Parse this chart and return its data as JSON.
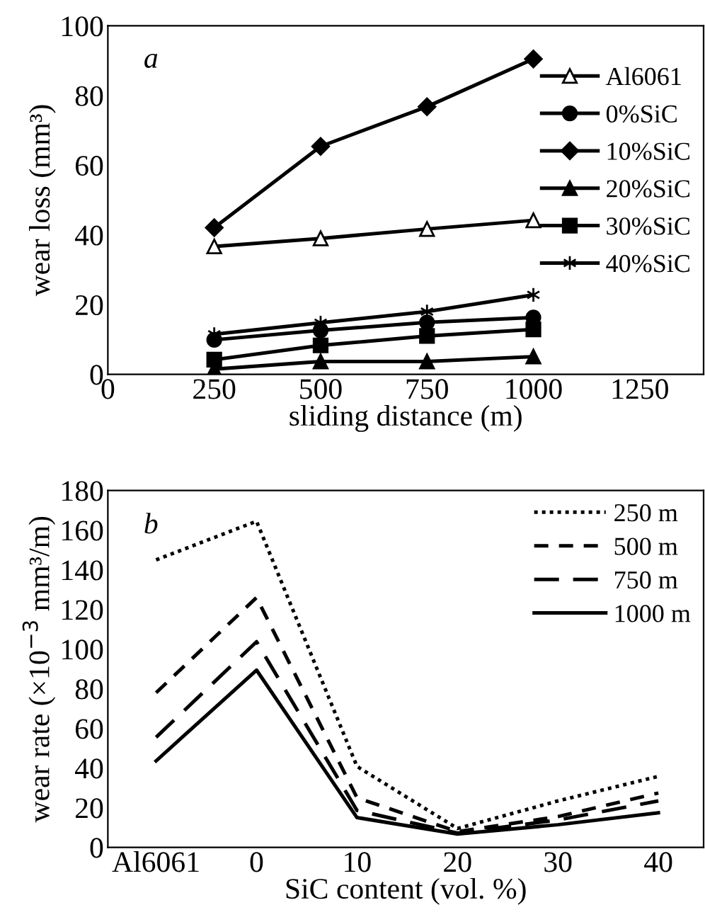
{
  "chart_data": [
    {
      "type": "line",
      "xlabel": "sliding distance (m)",
      "ylabel": "wear loss (mm³)",
      "annotations": [
        "a"
      ],
      "x": [
        250,
        500,
        750,
        1000
      ],
      "xlim": [
        0,
        1400
      ],
      "xticks": [
        0,
        250,
        500,
        750,
        1000,
        1250
      ],
      "ylim": [
        0,
        100
      ],
      "yticks": [
        0,
        20,
        40,
        60,
        80,
        100
      ],
      "legend": "right",
      "line_style": "solid",
      "series": [
        {
          "name": "Al6061",
          "color": "#000000",
          "marker": "triangle-open",
          "values": [
            36.7,
            39,
            41.7,
            44.2
          ]
        },
        {
          "name": "0%SiC",
          "color": "#000000",
          "marker": "circle",
          "values": [
            9.9,
            12.6,
            14.9,
            16.3
          ]
        },
        {
          "name": "10%SiC",
          "color": "#000000",
          "marker": "diamond",
          "values": [
            42.1,
            65.4,
            76.8,
            90.5
          ]
        },
        {
          "name": "20%SiC",
          "color": "#000000",
          "marker": "triangle",
          "values": [
            1.5,
            3.7,
            3.7,
            5.1
          ]
        },
        {
          "name": "30%SiC",
          "color": "#000000",
          "marker": "square",
          "values": [
            4.2,
            8.3,
            11,
            12.9
          ]
        },
        {
          "name": "40%SiC",
          "color": "#000000",
          "marker": "cross",
          "values": [
            11.5,
            14.8,
            18,
            22.8
          ]
        }
      ]
    },
    {
      "type": "line",
      "xlabel": "SiC content (vol. %)",
      "ylabel": "wear rate (×10$^{−3}$ mm³/m)",
      "annotations": [
        "b"
      ],
      "categories": [
        "Al6061",
        "0",
        "10",
        "20",
        "30",
        "40"
      ],
      "ylim": [
        0,
        180
      ],
      "yticks": [
        0,
        20,
        40,
        60,
        80,
        100,
        120,
        140,
        160,
        180
      ],
      "legend": "top right",
      "series": [
        {
          "name": "250 m",
          "color": "#000000",
          "line_style": "dotted",
          "values": [
            145,
            164.5,
            40.8,
            9.5,
            23.4,
            35.8
          ]
        },
        {
          "name": "500 m",
          "color": "#000000",
          "line_style": "dashed",
          "values": [
            78,
            126,
            25,
            7.9,
            15.5,
            27.4
          ]
        },
        {
          "name": "750 m",
          "color": "#000000",
          "line_style": "long dashed",
          "values": [
            55.5,
            103.7,
            18.6,
            7.2,
            13.8,
            23.4
          ]
        },
        {
          "name": "1000 m",
          "color": "#000000",
          "line_style": "solid",
          "values": [
            43.6,
            89.4,
            15,
            6.7,
            11.4,
            17.4
          ]
        }
      ]
    }
  ]
}
